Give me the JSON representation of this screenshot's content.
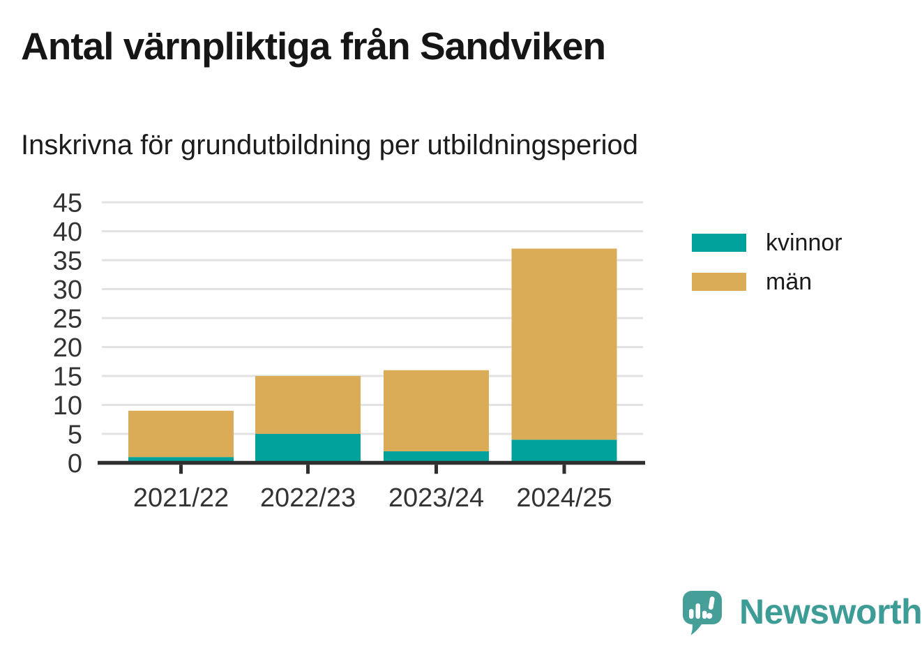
{
  "title": "Antal värnpliktiga från Sandviken",
  "subtitle": "Inskrivna för grundutbildning per utbildningsperiod",
  "chart_data": {
    "type": "bar",
    "stacked": true,
    "title": "Antal värnpliktiga från Sandviken",
    "subtitle": "Inskrivna för grundutbildning per utbildningsperiod",
    "categories": [
      "2021/22",
      "2022/23",
      "2023/24",
      "2024/25"
    ],
    "series": [
      {
        "name": "kvinnor",
        "color": "#00A29B",
        "values": [
          1,
          5,
          2,
          4
        ]
      },
      {
        "name": "män",
        "color": "#DBAC58",
        "values": [
          8,
          10,
          14,
          33
        ]
      }
    ],
    "totals": [
      9,
      15,
      16,
      37
    ],
    "ylim": [
      0,
      45
    ],
    "ytick_step": 5,
    "yticks": [
      0,
      5,
      10,
      15,
      20,
      25,
      30,
      35,
      40,
      45
    ],
    "grid": true,
    "legend_position": "right"
  },
  "legend": {
    "items": [
      {
        "label": "kvinnor",
        "color": "#00A29B"
      },
      {
        "label": "män",
        "color": "#DBAC58"
      }
    ]
  },
  "branding": {
    "logo_text": "Newsworthy",
    "logo_text_color": "#3E9C96",
    "bubble_color": "#469E98"
  },
  "colors": {
    "grid": "#E2E2E2",
    "axis": "#2F2F2F",
    "tick_label": "#333333",
    "title_text": "#161616"
  }
}
